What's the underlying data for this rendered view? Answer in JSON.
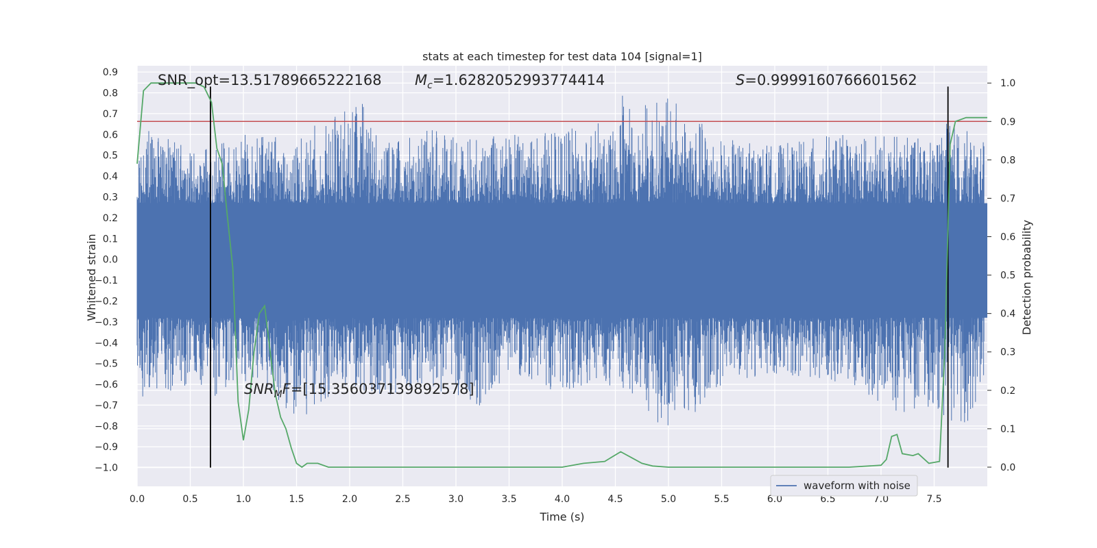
{
  "chart_data": {
    "type": "line",
    "title": "stats at each timestep for test data 104 [signal=1]",
    "xlabel": "Time (s)",
    "ylabel_left": "Whitened strain",
    "ylabel_right": "Detection probability",
    "xlim": [
      0.0,
      8.0
    ],
    "ylim_left": [
      -1.09,
      0.93
    ],
    "ylim_right": [
      -0.05,
      1.045
    ],
    "x_ticks": [
      0.0,
      0.5,
      1.0,
      1.5,
      2.0,
      2.5,
      3.0,
      3.5,
      4.0,
      4.5,
      5.0,
      5.5,
      6.0,
      6.5,
      7.0,
      7.5
    ],
    "y_left_ticks": [
      0.9,
      0.8,
      0.7,
      0.6,
      0.5,
      0.4,
      0.3,
      0.2,
      0.1,
      0.0,
      -0.1,
      -0.2,
      -0.3,
      -0.4,
      -0.5,
      -0.6,
      -0.7,
      -0.8,
      -0.9,
      -1.0
    ],
    "y_right_ticks": [
      1.0,
      0.9,
      0.8,
      0.7,
      0.6,
      0.5,
      0.4,
      0.3,
      0.2,
      0.1,
      0.0
    ],
    "grid": true,
    "legend_position": "bottom-right",
    "annotations": {
      "snr_opt": "SNR_opt=13.51789665222168",
      "mc_symbol": "M",
      "mc_sub": "c",
      "mc_value": "=1.6282052993774414",
      "s_symbol": "S",
      "s_value": "=0.9999160766601562",
      "snr_mf_symbol": "SNR",
      "snr_mf_sub": "M",
      "snr_mf_f": "F",
      "snr_mf_value": "=[15.356037139892578]"
    },
    "series": [
      {
        "name": "waveform with noise",
        "axis": "left",
        "color": "#4c72b0",
        "band_low": -0.28,
        "band_high": 0.27,
        "spike_top_envelope": [
          [
            0.0,
            0.45
          ],
          [
            0.1,
            0.62
          ],
          [
            0.2,
            0.6
          ],
          [
            0.35,
            0.58
          ],
          [
            0.5,
            0.55
          ],
          [
            0.75,
            0.56
          ],
          [
            1.0,
            0.6
          ],
          [
            1.5,
            0.58
          ],
          [
            2.1,
            0.8
          ],
          [
            2.3,
            0.55
          ],
          [
            2.7,
            0.66
          ],
          [
            3.0,
            0.58
          ],
          [
            3.5,
            0.6
          ],
          [
            4.0,
            0.62
          ],
          [
            4.5,
            0.68
          ],
          [
            4.6,
            0.84
          ],
          [
            4.7,
            0.76
          ],
          [
            5.05,
            0.78
          ],
          [
            5.5,
            0.58
          ],
          [
            6.0,
            0.55
          ],
          [
            6.5,
            0.6
          ],
          [
            7.0,
            0.6
          ],
          [
            7.5,
            0.58
          ],
          [
            7.65,
            0.68
          ],
          [
            8.0,
            0.55
          ]
        ],
        "spike_bottom_envelope": [
          [
            0.0,
            -0.5
          ],
          [
            0.05,
            -0.66
          ],
          [
            0.2,
            -0.64
          ],
          [
            0.55,
            -0.62
          ],
          [
            0.75,
            -0.7
          ],
          [
            1.0,
            -0.6
          ],
          [
            1.2,
            -0.6
          ],
          [
            1.5,
            -0.78
          ],
          [
            2.0,
            -0.6
          ],
          [
            2.3,
            -0.68
          ],
          [
            2.7,
            -0.6
          ],
          [
            3.25,
            -0.72
          ],
          [
            3.5,
            -0.55
          ],
          [
            4.1,
            -0.67
          ],
          [
            4.5,
            -0.6
          ],
          [
            4.9,
            -0.82
          ],
          [
            5.2,
            -0.77
          ],
          [
            5.5,
            -0.6
          ],
          [
            6.0,
            -0.55
          ],
          [
            6.5,
            -0.58
          ],
          [
            7.15,
            -0.75
          ],
          [
            7.5,
            -0.7
          ],
          [
            7.65,
            -1.0
          ],
          [
            8.0,
            -0.55
          ]
        ]
      },
      {
        "name": "",
        "axis": "right",
        "color": "#55a868",
        "x": [
          0.0,
          0.06,
          0.13,
          0.2,
          0.3,
          0.4,
          0.5,
          0.55,
          0.63,
          0.7,
          0.75,
          0.8,
          0.85,
          0.9,
          0.95,
          1.0,
          1.05,
          1.1,
          1.15,
          1.2,
          1.3,
          1.35,
          1.4,
          1.45,
          1.5,
          1.55,
          1.6,
          1.7,
          1.8,
          2.0,
          2.3,
          2.6,
          3.0,
          3.5,
          4.0,
          4.2,
          4.4,
          4.55,
          4.65,
          4.75,
          4.85,
          5.0,
          5.3,
          5.8,
          6.3,
          6.7,
          7.0,
          7.05,
          7.1,
          7.15,
          7.2,
          7.3,
          7.35,
          7.45,
          7.55,
          7.6,
          7.65,
          7.7,
          7.8,
          8.0
        ],
        "y": [
          0.79,
          0.98,
          1.0,
          1.0,
          1.0,
          1.0,
          1.0,
          1.0,
          0.99,
          0.95,
          0.83,
          0.79,
          0.65,
          0.52,
          0.17,
          0.07,
          0.15,
          0.3,
          0.4,
          0.42,
          0.19,
          0.13,
          0.1,
          0.05,
          0.01,
          0.0,
          0.01,
          0.01,
          0.0,
          0.0,
          0.0,
          0.0,
          0.0,
          0.0,
          0.0,
          0.01,
          0.015,
          0.04,
          0.025,
          0.01,
          0.003,
          0.0,
          0.0,
          0.0,
          0.0,
          0.0,
          0.005,
          0.02,
          0.08,
          0.085,
          0.035,
          0.03,
          0.035,
          0.01,
          0.015,
          0.3,
          0.84,
          0.9,
          0.91,
          0.91
        ]
      },
      {
        "name": "",
        "axis": "right",
        "color": "#c44e52",
        "kind": "threshold",
        "value": 0.9
      }
    ],
    "vertical_lines": [
      0.69,
      7.63
    ],
    "vertical_lines_top": 0.83,
    "vertical_lines_bottom": -1.0
  }
}
